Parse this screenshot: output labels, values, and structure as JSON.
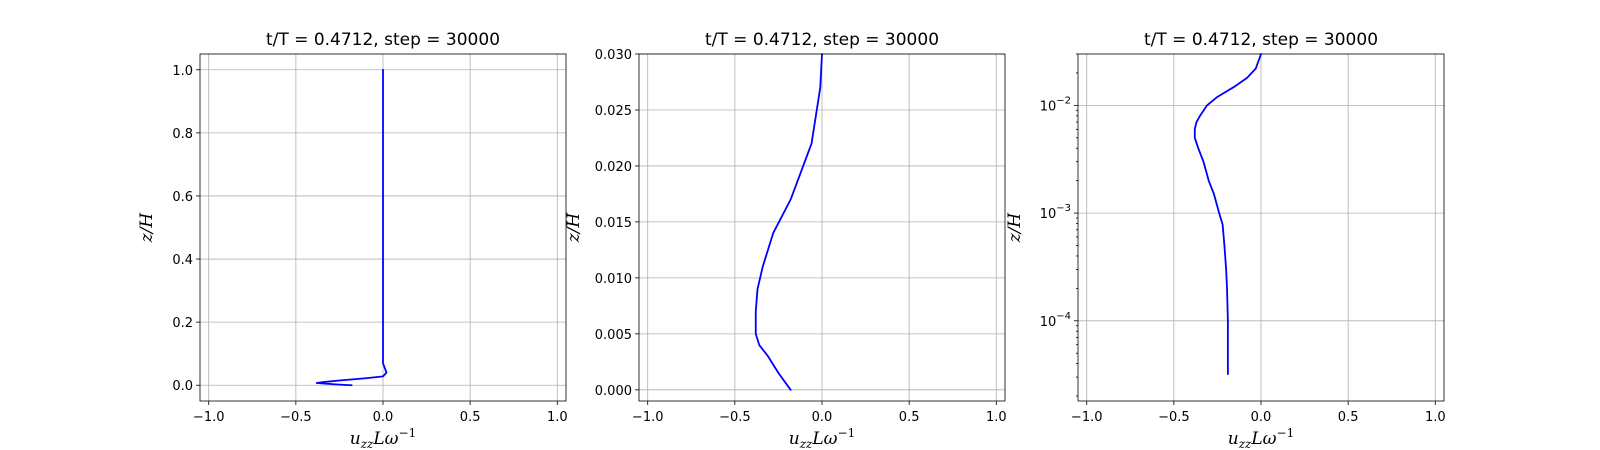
{
  "chart_data": [
    {
      "type": "line",
      "title": "t/T = 0.4712, step = 30000",
      "xlabel": "u_zz L ω⁻¹",
      "ylabel": "z/H",
      "yscale": "linear",
      "xlim": [
        -1.05,
        1.05
      ],
      "ylim": [
        -0.05,
        1.05
      ],
      "xticks": [
        -1.0,
        -0.5,
        0.0,
        0.5,
        1.0
      ],
      "xtick_labels": [
        "−1.0",
        "−0.5",
        "0.0",
        "0.5",
        "1.0"
      ],
      "yticks": [
        0.0,
        0.2,
        0.4,
        0.6,
        0.8,
        1.0
      ],
      "ytick_labels": [
        "0.0",
        "0.2",
        "0.4",
        "0.6",
        "0.8",
        "1.0"
      ],
      "grid": true,
      "color": "#0000ff",
      "series": [
        {
          "x": [
            -0.18,
            -0.25,
            -0.38,
            -0.34,
            -0.25,
            -0.1,
            0.0,
            0.02,
            0.01,
            0.0,
            0.0,
            0.0,
            0.0,
            0.0,
            0.0
          ],
          "y": [
            0.0,
            0.002,
            0.007,
            0.01,
            0.015,
            0.022,
            0.028,
            0.04,
            0.055,
            0.07,
            0.1,
            0.3,
            0.5,
            0.8,
            1.0
          ]
        }
      ]
    },
    {
      "type": "line",
      "title": "t/T = 0.4712, step = 30000",
      "xlabel": "u_zz L ω⁻¹",
      "ylabel": "z/H",
      "yscale": "linear",
      "xlim": [
        -1.05,
        1.05
      ],
      "ylim": [
        -0.001,
        0.03
      ],
      "xticks": [
        -1.0,
        -0.5,
        0.0,
        0.5,
        1.0
      ],
      "xtick_labels": [
        "−1.0",
        "−0.5",
        "0.0",
        "0.5",
        "1.0"
      ],
      "yticks": [
        0.0,
        0.005,
        0.01,
        0.015,
        0.02,
        0.025,
        0.03
      ],
      "ytick_labels": [
        "0.000",
        "0.005",
        "0.010",
        "0.015",
        "0.020",
        "0.025",
        "0.030"
      ],
      "grid": true,
      "color": "#0000ff",
      "series": [
        {
          "x": [
            -0.18,
            -0.25,
            -0.31,
            -0.36,
            -0.38,
            -0.38,
            -0.37,
            -0.34,
            -0.28,
            -0.18,
            -0.12,
            -0.06,
            -0.03,
            -0.01,
            0.0
          ],
          "y": [
            0.0,
            0.0015,
            0.003,
            0.004,
            0.005,
            0.007,
            0.009,
            0.011,
            0.014,
            0.017,
            0.0195,
            0.022,
            0.025,
            0.027,
            0.03
          ]
        }
      ]
    },
    {
      "type": "line",
      "title": "t/T = 0.4712, step = 30000",
      "xlabel": "u_zz L ω⁻¹",
      "ylabel": "z/H",
      "yscale": "log",
      "xlim": [
        -1.05,
        1.05
      ],
      "ylim": [
        1.8e-05,
        0.03
      ],
      "xticks": [
        -1.0,
        -0.5,
        0.0,
        0.5,
        1.0
      ],
      "xtick_labels": [
        "−1.0",
        "−0.5",
        "0.0",
        "0.5",
        "1.0"
      ],
      "yticks": [
        0.0001,
        0.001,
        0.01
      ],
      "ytick_labels": [
        "10",
        "10",
        "10"
      ],
      "ytick_exponents": [
        "−4",
        "−3",
        "−2"
      ],
      "grid": true,
      "color": "#0000ff",
      "series": [
        {
          "x": [
            -0.19,
            -0.19,
            -0.195,
            -0.2,
            -0.21,
            -0.22,
            -0.24,
            -0.27,
            -0.3,
            -0.33,
            -0.36,
            -0.38,
            -0.38,
            -0.37,
            -0.35,
            -0.31,
            -0.25,
            -0.15,
            -0.08,
            -0.03,
            0.0
          ],
          "y": [
            3.2e-05,
            0.0001,
            0.0002,
            0.0003,
            0.0005,
            0.00078,
            0.001,
            0.0015,
            0.002,
            0.003,
            0.004,
            0.005,
            0.006,
            0.007,
            0.008,
            0.01,
            0.012,
            0.015,
            0.018,
            0.022,
            0.03
          ]
        }
      ]
    }
  ]
}
